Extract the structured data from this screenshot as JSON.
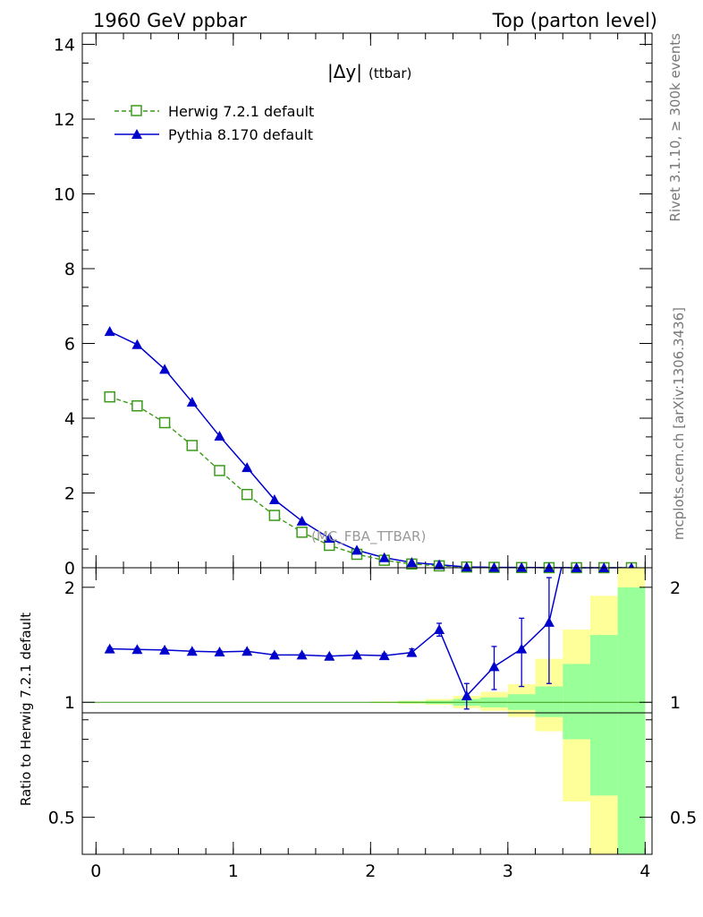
{
  "header": {
    "left": "1960 GeV ppbar",
    "right": "Top (parton level)"
  },
  "side_labels": {
    "rivet": "Rivet 3.1.10, ≥ 300k events",
    "mcplots": "mcplots.cern.ch [arXiv:1306.3436]"
  },
  "watermark": "(MC_FBA_TTBAR)",
  "colors": {
    "herwig": "#3c9a1a",
    "pythia": "#0000cc",
    "band_outer": "#ffff99",
    "band_inner": "#99ff99"
  },
  "chart_data": [
    {
      "type": "line",
      "title_main": "|Δy|",
      "title_sub": "(ttbar)",
      "xlim": [
        -0.1,
        4.05
      ],
      "ylim": [
        0,
        14.3
      ],
      "yticks": [
        0,
        2,
        4,
        6,
        8,
        10,
        12,
        14
      ],
      "ytick_labels": [
        "0",
        "2",
        "4",
        "6",
        "8",
        "10",
        "12",
        "14"
      ],
      "x": [
        0.1,
        0.3,
        0.5,
        0.7,
        0.9,
        1.1,
        1.3,
        1.5,
        1.7,
        1.9,
        2.1,
        2.3,
        2.5,
        2.7,
        2.9,
        3.1,
        3.3,
        3.5,
        3.7,
        3.9
      ],
      "legend_position": "top-left",
      "series": [
        {
          "name": "Herwig 7.2.1 default",
          "style": "dashed-open-square",
          "values": [
            4.57,
            4.33,
            3.88,
            3.27,
            2.6,
            1.96,
            1.4,
            0.95,
            0.6,
            0.36,
            0.2,
            0.1,
            0.05,
            0.02,
            0.01,
            0.005,
            0.002,
            0.001,
            0.0005,
            0.0002
          ]
        },
        {
          "name": "Pythia 8.170 default",
          "style": "solid-filled-triangle",
          "values": [
            6.32,
            5.97,
            5.31,
            4.43,
            3.52,
            2.68,
            1.82,
            1.25,
            0.79,
            0.47,
            0.27,
            0.14,
            0.08,
            0.02,
            0.01,
            0.008,
            0.004,
            0.001,
            0.0005,
            0.0002
          ]
        }
      ]
    },
    {
      "type": "line",
      "ylabel": "Ratio to Herwig 7.2.1 default",
      "xlim": [
        -0.1,
        4.05
      ],
      "ylim": [
        0.4,
        2.25
      ],
      "log_y": true,
      "xticks": [
        0,
        1,
        2,
        3,
        4
      ],
      "xtick_labels": [
        "0",
        "1",
        "2",
        "3",
        "4"
      ],
      "yticks": [
        0.5,
        1,
        2
      ],
      "ytick_labels": [
        "0.5",
        "1",
        "2"
      ],
      "x": [
        0.1,
        0.3,
        0.5,
        0.7,
        0.9,
        1.1,
        1.3,
        1.5,
        1.7,
        1.9,
        2.1,
        2.3,
        2.5,
        2.7,
        2.9,
        3.1,
        3.3
      ],
      "ratio_values": [
        1.38,
        1.375,
        1.37,
        1.36,
        1.355,
        1.36,
        1.33,
        1.33,
        1.32,
        1.33,
        1.325,
        1.35,
        1.55,
        1.04,
        1.24,
        1.38,
        1.62
      ],
      "ratio_errors": [
        0.01,
        0.01,
        0.01,
        0.01,
        0.01,
        0.01,
        0.01,
        0.01,
        0.01,
        0.01,
        0.015,
        0.03,
        0.06,
        0.08,
        0.16,
        0.28,
        0.5
      ],
      "ratio_last_point": [
        3.39,
        2.25
      ],
      "bands": {
        "edges": [
          2.0,
          2.2,
          2.4,
          2.6,
          2.8,
          3.0,
          3.2,
          3.4,
          3.6,
          3.8,
          4.0
        ],
        "outer_low": [
          0.995,
          0.99,
          0.985,
          0.965,
          0.95,
          0.915,
          0.84,
          0.55,
          0.37,
          0.37
        ],
        "outer_high": [
          1.005,
          1.01,
          1.02,
          1.04,
          1.065,
          1.115,
          1.3,
          1.55,
          1.9,
          2.25
        ],
        "inner_low": [
          0.997,
          0.994,
          0.99,
          0.98,
          0.97,
          0.955,
          0.915,
          0.8,
          0.57,
          0.37
        ],
        "inner_high": [
          1.003,
          1.006,
          1.01,
          1.02,
          1.03,
          1.05,
          1.1,
          1.26,
          1.5,
          2.0
        ]
      }
    }
  ]
}
